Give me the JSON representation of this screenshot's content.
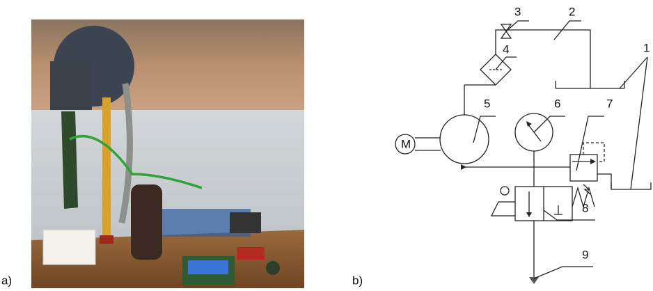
{
  "panels": [
    {
      "label": "a)"
    },
    {
      "label": "b)"
    }
  ],
  "diagram": {
    "motor_label": "M",
    "callouts": [
      "1",
      "2",
      "3",
      "4",
      "5",
      "6",
      "7",
      "8",
      "9"
    ]
  }
}
